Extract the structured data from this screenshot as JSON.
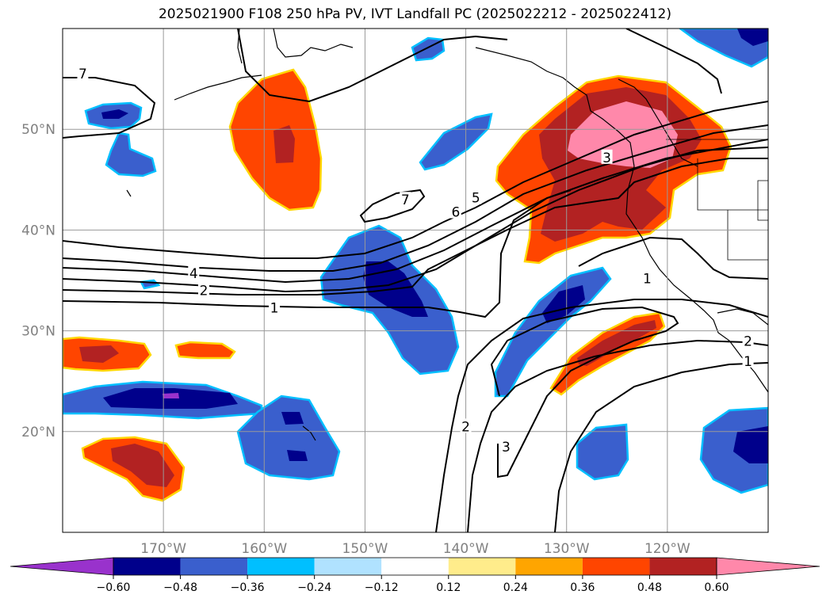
{
  "chart_data": {
    "type": "heatmap",
    "title": "2025021900 F108 250 hPa PV, IVT Landfall PC (2025022212 - 2025022412)",
    "map": {
      "lon_range": [
        -180,
        -110
      ],
      "lat_range": [
        10,
        60
      ],
      "lon_ticks": [
        -170,
        -160,
        -150,
        -140,
        -130,
        -120
      ],
      "lon_tick_labels": [
        "170°W",
        "160°W",
        "150°W",
        "140°W",
        "130°W",
        "120°W"
      ],
      "lat_ticks": [
        20,
        30,
        40,
        50
      ],
      "lat_tick_labels": [
        "20°N",
        "30°N",
        "40°N",
        "50°N"
      ],
      "grid": true
    },
    "filled_field": {
      "levels": [
        -0.72,
        -0.6,
        -0.48,
        -0.36,
        -0.24,
        -0.12,
        0.12,
        0.24,
        0.36,
        0.48,
        0.6,
        0.72
      ],
      "colors": [
        "#9932cc",
        "#00008b",
        "#3a5fcd",
        "#00bfff",
        "#b0e2ff",
        "#ffffff",
        "#ffec8b",
        "#ffa500",
        "#ff4500",
        "#b22222",
        "#ff88aa"
      ],
      "extend": "both",
      "colorbar_ticks": [
        -0.6,
        -0.48,
        -0.36,
        -0.24,
        -0.12,
        0.12,
        0.24,
        0.36,
        0.48,
        0.6
      ],
      "colorbar_tick_labels": [
        "−0.60",
        "−0.48",
        "−0.36",
        "−0.24",
        "−0.12",
        "0.12",
        "0.24",
        "0.36",
        "0.48",
        "0.60"
      ]
    },
    "contours": {
      "levels": [
        1,
        2,
        3,
        4,
        5,
        6,
        7
      ],
      "line_color": "#000000",
      "labels": [
        {
          "text": "7",
          "lon": -178,
          "lat": 55.5
        },
        {
          "text": "7",
          "lon": -146,
          "lat": 43.0
        },
        {
          "text": "6",
          "lon": -141,
          "lat": 41.8
        },
        {
          "text": "5",
          "lon": -139,
          "lat": 43.2
        },
        {
          "text": "4",
          "lon": -167,
          "lat": 35.7
        },
        {
          "text": "3",
          "lon": -126,
          "lat": 47.2
        },
        {
          "text": "2",
          "lon": -166,
          "lat": 34.0
        },
        {
          "text": "1",
          "lon": -159,
          "lat": 32.3
        },
        {
          "text": "1",
          "lon": -122,
          "lat": 35.2
        },
        {
          "text": "2",
          "lon": -112,
          "lat": 29.0
        },
        {
          "text": "1",
          "lon": -112,
          "lat": 27.0
        },
        {
          "text": "2",
          "lon": -140,
          "lat": 20.5
        },
        {
          "text": "3",
          "lon": -136,
          "lat": 18.5
        }
      ]
    }
  }
}
